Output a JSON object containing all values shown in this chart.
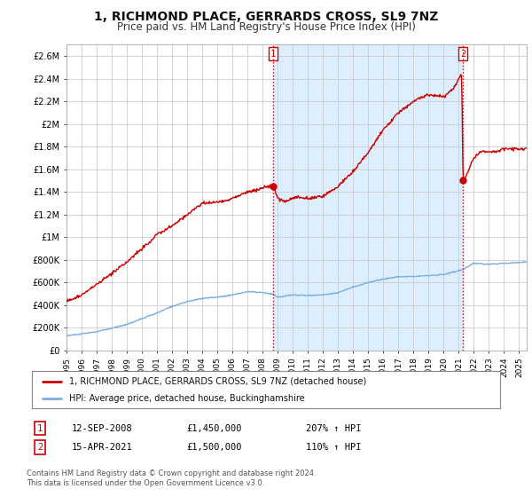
{
  "title": "1, RICHMOND PLACE, GERRARDS CROSS, SL9 7NZ",
  "subtitle": "Price paid vs. HM Land Registry's House Price Index (HPI)",
  "title_fontsize": 10,
  "subtitle_fontsize": 8.5,
  "bg_color": "#ffffff",
  "grid_color": "#cccccc",
  "hpi_color": "#7aade0",
  "price_color": "#cc0000",
  "shade_color": "#ddeeff",
  "ylim": [
    0,
    2700000
  ],
  "yticks": [
    0,
    200000,
    400000,
    600000,
    800000,
    1000000,
    1200000,
    1400000,
    1600000,
    1800000,
    2000000,
    2200000,
    2400000,
    2600000
  ],
  "ytick_labels": [
    "£0",
    "£200K",
    "£400K",
    "£600K",
    "£800K",
    "£1M",
    "£1.2M",
    "£1.4M",
    "£1.6M",
    "£1.8M",
    "£2M",
    "£2.2M",
    "£2.4M",
    "£2.6M"
  ],
  "sale1_year": 2008.7,
  "sale1_price": 1450000,
  "sale1_label": "1",
  "sale2_year": 2021.28,
  "sale2_price": 1500000,
  "sale2_label": "2",
  "annotation1_date": "12-SEP-2008",
  "annotation1_price": "£1,450,000",
  "annotation1_hpi": "207% ↑ HPI",
  "annotation2_date": "15-APR-2021",
  "annotation2_price": "£1,500,000",
  "annotation2_hpi": "110% ↑ HPI",
  "legend_line1": "1, RICHMOND PLACE, GERRARDS CROSS, SL9 7NZ (detached house)",
  "legend_line2": "HPI: Average price, detached house, Buckinghamshire",
  "footer": "Contains HM Land Registry data © Crown copyright and database right 2024.\nThis data is licensed under the Open Government Licence v3.0.",
  "xmin": 1995,
  "xmax": 2025.5
}
